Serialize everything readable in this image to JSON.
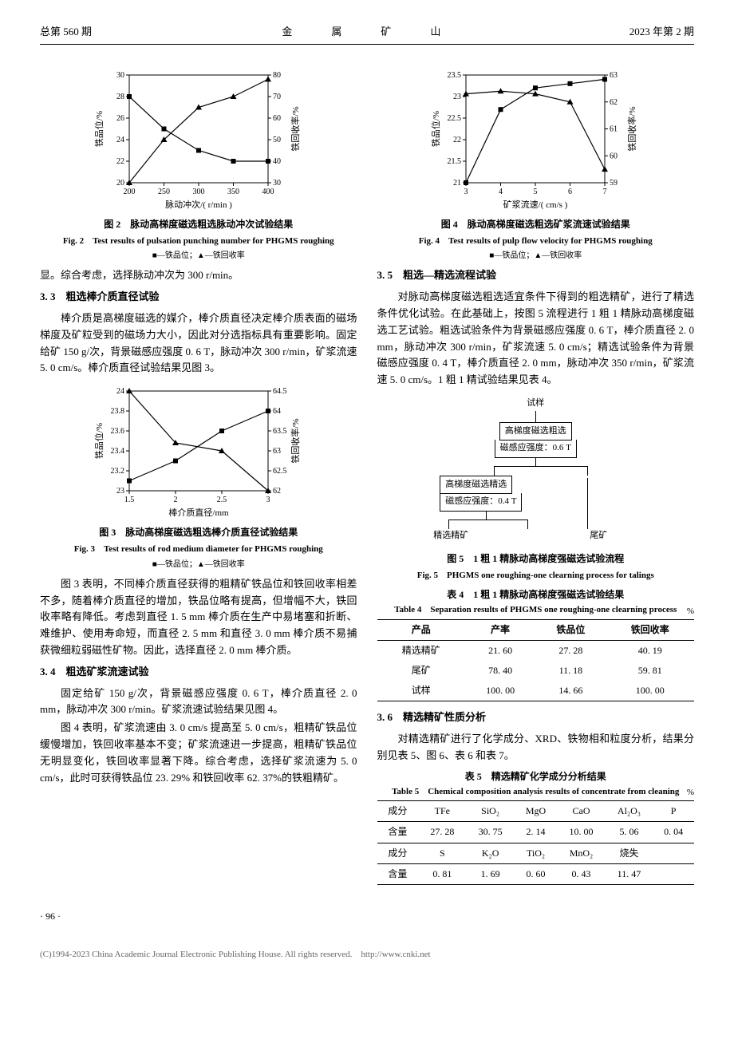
{
  "header": {
    "left": "总第 560 期",
    "center": "金　属　矿　山",
    "right": "2023 年第 2 期"
  },
  "fig2": {
    "title_cn": "图 2　脉动高梯度磁选粗选脉动冲次试验结果",
    "title_en": "Fig. 2　Test results of pulsation punching number for PHGMS roughing",
    "legend": "■—铁品位；▲—铁回收率",
    "xlabel": "脉动冲次/( r/min )",
    "ylabel_left": "铁品位/%",
    "ylabel_right": "铁回收率/%",
    "x": [
      200,
      250,
      300,
      350,
      400
    ],
    "grade": [
      28,
      25,
      23,
      22,
      22
    ],
    "recovery": [
      30,
      50,
      65,
      70,
      78
    ],
    "ylim_left": [
      20,
      30
    ],
    "ytick_left": [
      20,
      22,
      24,
      26,
      28,
      30
    ],
    "ylim_right": [
      30,
      80
    ],
    "ytick_right": [
      30,
      40,
      50,
      60,
      70,
      80
    ],
    "xlim": [
      200,
      400
    ],
    "xtick": [
      200,
      250,
      300,
      350,
      400
    ],
    "colors": {
      "line": "#000000",
      "bg": "#ffffff"
    }
  },
  "fig3": {
    "title_cn": "图 3　脉动高梯度磁选粗选棒介质直径试验结果",
    "title_en": "Fig. 3　Test results of rod medium diameter for PHGMS roughing",
    "legend": "■—铁品位；▲—铁回收率",
    "xlabel": "棒介质直径/mm",
    "ylabel_left": "铁品位/%",
    "ylabel_right": "铁回收率/%",
    "x": [
      1.5,
      2.0,
      2.5,
      3.0
    ],
    "grade": [
      23.1,
      23.3,
      23.6,
      23.8
    ],
    "recovery": [
      64.5,
      63.2,
      63.0,
      62.0
    ],
    "ylim_left": [
      23.0,
      24.0
    ],
    "ytick_left": [
      23.0,
      23.2,
      23.4,
      23.6,
      23.8,
      24.0
    ],
    "ylim_right": [
      62.0,
      64.5
    ],
    "ytick_right": [
      62.0,
      62.5,
      63.0,
      63.5,
      64.0,
      64.5
    ],
    "xlim": [
      1.5,
      3.0
    ],
    "xtick": [
      1.5,
      2.0,
      2.5,
      3.0
    ],
    "colors": {
      "line": "#000000",
      "bg": "#ffffff"
    }
  },
  "fig4": {
    "title_cn": "图 4　脉动高梯度磁选粗选矿浆流速试验结果",
    "title_en": "Fig. 4　Test results of pulp flow velocity for PHGMS roughing",
    "legend": "■—铁品位；▲—铁回收率",
    "xlabel": "矿浆流速/( cm/s )",
    "ylabel_left": "铁品位/%",
    "ylabel_right": "铁回收率/%",
    "x": [
      3.0,
      4.0,
      5.0,
      6.0,
      7.0
    ],
    "grade": [
      21.0,
      22.7,
      23.2,
      23.3,
      23.4
    ],
    "recovery": [
      62.3,
      62.4,
      62.3,
      62.0,
      59.5
    ],
    "ylim_left": [
      21.0,
      23.5
    ],
    "ytick_left": [
      21.0,
      21.5,
      22.0,
      22.5,
      23.0,
      23.5
    ],
    "ylim_right": [
      59,
      63
    ],
    "ytick_right": [
      59,
      60,
      61,
      62,
      63
    ],
    "xlim": [
      3.0,
      7.0
    ],
    "xtick": [
      3.0,
      4.0,
      5.0,
      6.0,
      7.0
    ],
    "colors": {
      "line": "#000000",
      "bg": "#ffffff"
    }
  },
  "fig5": {
    "title_cn": "图 5　1 粗 1 精脉动高梯度强磁选试验流程",
    "title_en": "Fig. 5　PHGMS one roughing-one clearning process for talings",
    "nodes": {
      "sample": "试样",
      "rough": "高梯度磁选粗选",
      "rough_param": "磁感应强度：0.6 T",
      "fine": "高梯度磁选精选",
      "fine_param": "磁感应强度：0.4 T",
      "conc": "精选精矿",
      "tail": "尾矿"
    }
  },
  "text": {
    "p0": "显。综合考虑，选择脉动冲次为 300 r/min。",
    "h33": "3. 3　粗选棒介质直径试验",
    "p33_1": "棒介质是高梯度磁选的媒介，棒介质直径决定棒介质表面的磁场梯度及矿粒受到的磁场力大小，因此对分选指标具有重要影响。固定给矿 150 g/次，背景磁感应强度 0. 6 T，脉动冲次 300 r/min，矿浆流速 5. 0 cm/s。棒介质直径试验结果见图 3。",
    "p33_2": "图 3 表明，不同棒介质直径获得的粗精矿铁品位和铁回收率相差不多，随着棒介质直径的增加，铁品位略有提高，但增幅不大，铁回收率略有降低。考虑到直径 1. 5 mm 棒介质在生产中易堵塞和折断、难维护、使用寿命短，而直径 2. 5 mm 和直径 3. 0 mm 棒介质不易捕获微细粒弱磁性矿物。因此，选择直径 2. 0 mm 棒介质。",
    "h34": "3. 4　粗选矿浆流速试验",
    "p34_1": "固定给矿 150 g/次，背景磁感应强度 0. 6 T，棒介质直径 2. 0 mm，脉动冲次 300 r/min。矿浆流速试验结果见图 4。",
    "p34_2": "图 4 表明，矿浆流速由 3. 0 cm/s 提高至 5. 0 cm/s，粗精矿铁品位缓慢增加，铁回收率基本不变；矿浆流速进一步提高，粗精矿铁品位无明显变化，铁回收率显著下降。综合考虑，选择矿浆流速为 5. 0 cm/s，此时可获得铁品位 23. 29% 和铁回收率 62. 37%的铁粗精矿。",
    "h35": "3. 5　粗选—精选流程试验",
    "p35_1": "对脉动高梯度磁选粗选适宜条件下得到的粗选精矿，进行了精选条件优化试验。在此基础上，按图 5 流程进行 1 粗 1 精脉动高梯度磁选工艺试验。粗选试验条件为背景磁感应强度 0. 6 T，棒介质直径 2. 0 mm，脉动冲次 300 r/min，矿浆流速 5. 0 cm/s；精选试验条件为背景磁感应强度 0. 4 T，棒介质直径 2. 0 mm，脉动冲次 350 r/min，矿浆流速 5. 0 cm/s。1 粗 1 精试验结果见表 4。",
    "h36": "3. 6　精选精矿性质分析",
    "p36_1": "对精选精矿进行了化学成分、XRD、铁物相和粒度分析，结果分别见表 5、图 6、表 6 和表 7。"
  },
  "table4": {
    "cap_cn": "表 4　1 粗 1 精脉动高梯度强磁选试验结果",
    "cap_en": "Table 4　Separation results of PHGMS one roughing-one clearning process",
    "unit": "%",
    "headers": [
      "产品",
      "产率",
      "铁品位",
      "铁回收率"
    ],
    "rows": [
      [
        "精选精矿",
        "21. 60",
        "27. 28",
        "40. 19"
      ],
      [
        "尾矿",
        "78. 40",
        "11. 18",
        "59. 81"
      ],
      [
        "试样",
        "100. 00",
        "14. 66",
        "100. 00"
      ]
    ]
  },
  "table5": {
    "cap_cn": "表 5　精选精矿化学成分分析结果",
    "cap_en": "Table 5　Chemical composition analysis results of concentrate from cleaning",
    "unit": "%",
    "r1h": [
      "成分",
      "TFe",
      "SiO₂",
      "MgO",
      "CaO",
      "Al₂O₃",
      "P"
    ],
    "r1v": [
      "含量",
      "27. 28",
      "30. 75",
      "2. 14",
      "10. 00",
      "5. 06",
      "0. 04"
    ],
    "r2h": [
      "成分",
      "S",
      "K₂O",
      "TiO₂",
      "MnO₂",
      "烧失",
      ""
    ],
    "r2v": [
      "含量",
      "0. 81",
      "1. 69",
      "0. 60",
      "0. 43",
      "11. 47",
      ""
    ]
  },
  "page_num": "· 96 ·",
  "footer": "(C)1994-2023 China Academic Journal Electronic Publishing House. All rights reserved.　http://www.cnki.net"
}
